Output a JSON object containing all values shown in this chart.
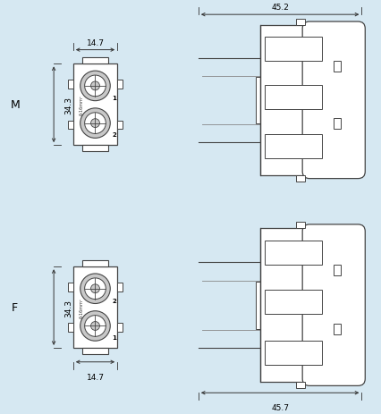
{
  "bg_color": "#d6e8f2",
  "lc": "#888888",
  "lc2": "#666666",
  "lc_dark": "#444444",
  "dim_color": "#333333",
  "title_M": "M",
  "title_F": "F",
  "dim_width_top": "14.7",
  "dim_height_M": "34.3",
  "dim_width_top2": "45.2",
  "dim_width_bot": "14.7",
  "dim_height_F": "34.3",
  "dim_width_bot2": "45.7"
}
